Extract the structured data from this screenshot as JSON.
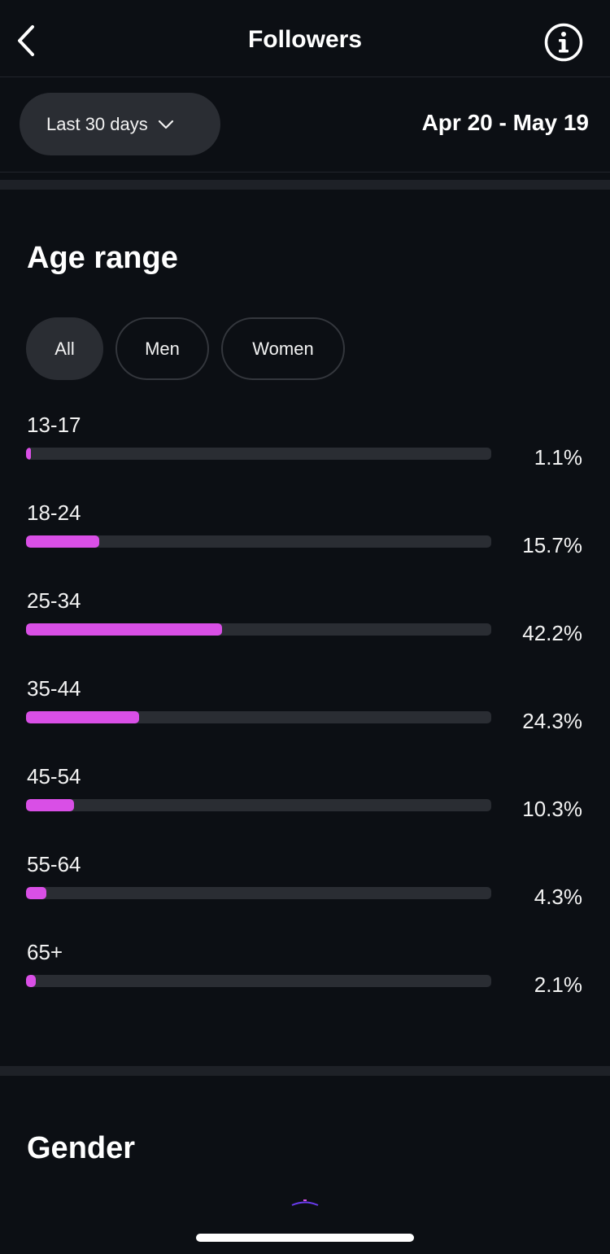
{
  "header": {
    "title": "Followers",
    "back_icon": "chevron-left-icon",
    "info_icon": "info-icon"
  },
  "filter": {
    "range_label": "Last 30 days",
    "range_icon": "chevron-down-icon",
    "date_range": "Apr 20 - May 19"
  },
  "age_section": {
    "title": "Age range",
    "segments": [
      {
        "label": "All",
        "selected": true
      },
      {
        "label": "Men",
        "selected": false
      },
      {
        "label": "Women",
        "selected": false
      }
    ],
    "accent_color": "#d94fe6",
    "rows": [
      {
        "label": "13-17",
        "value": 1.1,
        "percent": "1.1%"
      },
      {
        "label": "18-24",
        "value": 15.7,
        "percent": "15.7%"
      },
      {
        "label": "25-34",
        "value": 42.2,
        "percent": "42.2%"
      },
      {
        "label": "35-44",
        "value": 24.3,
        "percent": "24.3%"
      },
      {
        "label": "45-54",
        "value": 10.3,
        "percent": "10.3%"
      },
      {
        "label": "55-64",
        "value": 4.3,
        "percent": "4.3%"
      },
      {
        "label": "65+",
        "value": 2.1,
        "percent": "2.1%"
      }
    ]
  },
  "gender_section": {
    "title": "Gender"
  },
  "chart_data": {
    "type": "bar",
    "categories": [
      "13-17",
      "18-24",
      "25-34",
      "35-44",
      "45-54",
      "55-64",
      "65+"
    ],
    "values": [
      1.1,
      15.7,
      42.2,
      24.3,
      10.3,
      4.3,
      2.1
    ],
    "xlim": [
      0,
      100
    ]
  }
}
